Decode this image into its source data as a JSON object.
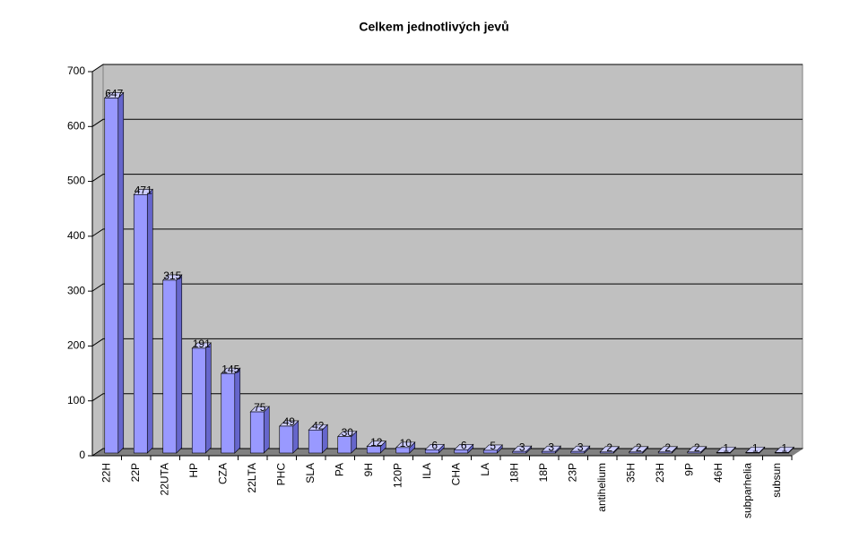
{
  "chart_data": {
    "type": "bar3d",
    "title": "Celkem jednotlivých jevů",
    "categories": [
      "22H",
      "22P",
      "22UTA",
      "HP",
      "CZA",
      "22LTA",
      "PHC",
      "SLA",
      "PA",
      "9H",
      "120P",
      "ILA",
      "CHA",
      "LA",
      "18H",
      "18P",
      "23P",
      "antihelium",
      "35H",
      "23H",
      "9P",
      "46H",
      "subparhelia",
      "subsun"
    ],
    "values": [
      647,
      471,
      315,
      191,
      145,
      75,
      49,
      42,
      30,
      12,
      10,
      6,
      6,
      5,
      3,
      3,
      3,
      2,
      2,
      2,
      2,
      1,
      1,
      1
    ],
    "color": "#9999ff",
    "ylim": [
      0,
      700
    ],
    "yticks": [
      0,
      100,
      200,
      300,
      400,
      500,
      600,
      700
    ],
    "grid": true
  }
}
